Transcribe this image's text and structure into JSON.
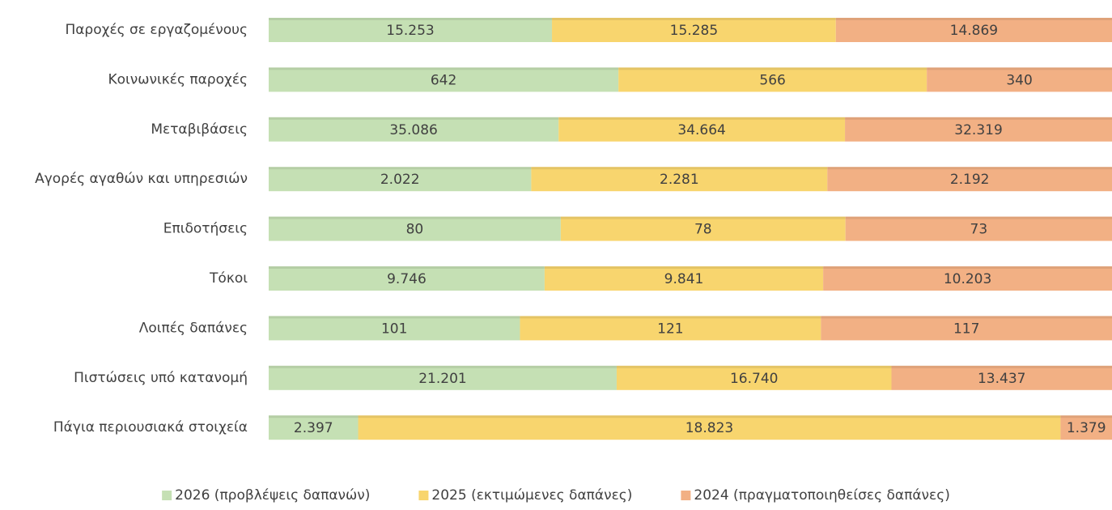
{
  "chart_data": {
    "type": "bar",
    "orientation": "horizontal",
    "stacking": "percent",
    "categories": [
      "Παροχές σε εργαζομένους",
      "Κοινωνικές παροχές",
      "Μεταβιβάσεις",
      "Αγορές αγαθών και υπηρεσιών",
      "Επιδοτήσεις",
      "Τόκοι",
      "Λοιπές δαπάνες",
      "Πιστώσεις υπό κατανομή",
      "Πάγια περιουσιακά στοιχεία"
    ],
    "series": [
      {
        "name": "2026 (προβλέψεις δαπανών)",
        "color": "#c5e0b4",
        "values": [
          15253,
          642,
          35086,
          2022,
          80,
          9746,
          101,
          21201,
          2397
        ],
        "value_labels": [
          "15.253",
          "642",
          "35.086",
          "2.022",
          "80",
          "9.746",
          "101",
          "21.201",
          "2.397"
        ]
      },
      {
        "name": "2025 (εκτιμώμενες δαπάνες)",
        "color": "#f8d56e",
        "values": [
          15285,
          566,
          34664,
          2281,
          78,
          9841,
          121,
          16740,
          18823
        ],
        "value_labels": [
          "15.285",
          "566",
          "34.664",
          "2.281",
          "78",
          "9.841",
          "121",
          "16.740",
          "18.823"
        ]
      },
      {
        "name": "2024 (πραγματοποιηθείσες δαπάνες)",
        "color": "#f2b084",
        "values": [
          14869,
          340,
          32319,
          2192,
          73,
          10203,
          117,
          13437,
          1379
        ],
        "value_labels": [
          "14.869",
          "340",
          "32.319",
          "2.192",
          "73",
          "10.203",
          "117",
          "13.437",
          "1.379"
        ]
      }
    ],
    "legend": "bottom"
  }
}
